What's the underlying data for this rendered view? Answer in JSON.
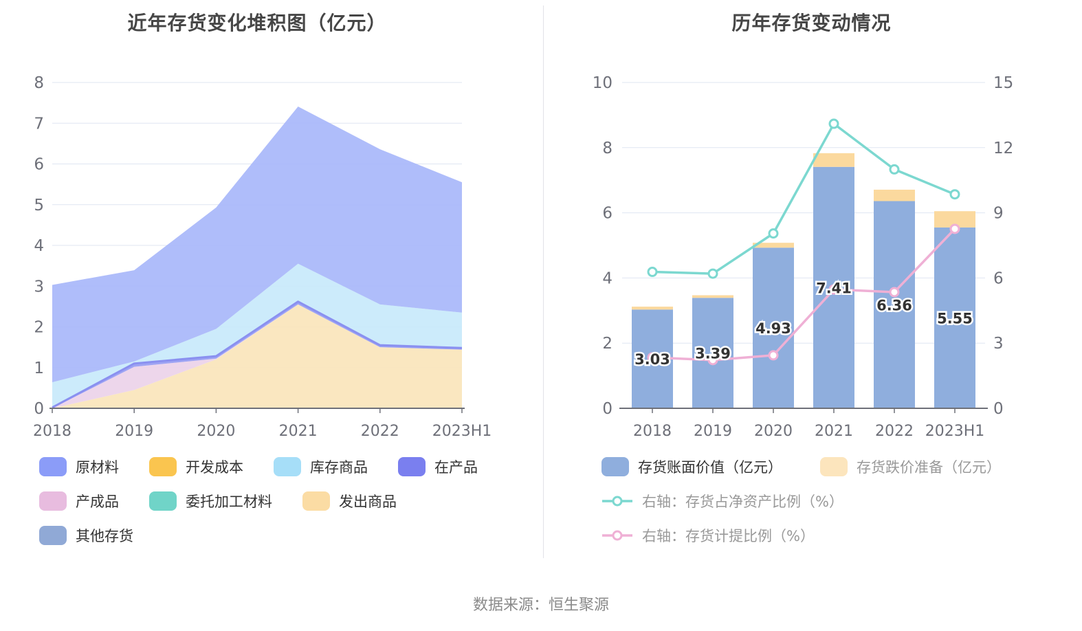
{
  "source_text": "数据来源：恒生聚源",
  "chart_data": [
    {
      "type": "area",
      "title": "近年存货变化堆积图（亿元）",
      "categories": [
        "2018",
        "2019",
        "2020",
        "2021",
        "2022",
        "2023H1"
      ],
      "ylim": [
        0,
        8
      ],
      "y_ticks": [
        0,
        1,
        2,
        3,
        4,
        5,
        6,
        7,
        8
      ],
      "grid": true,
      "legend_position": "bottom",
      "stack_order_bottom_to_top": [
        "其他存货",
        "发出商品",
        "委托加工材料",
        "产成品",
        "在产品",
        "库存商品",
        "开发成本",
        "原材料"
      ],
      "series": [
        {
          "id": "raw-materials",
          "name": "原材料",
          "legend_color": "#8B9CF8",
          "fill": "#A9B8FA",
          "values": [
            2.39,
            2.24,
            2.98,
            3.86,
            3.81,
            3.2
          ]
        },
        {
          "id": "development-cost",
          "name": "开发成本",
          "legend_color": "#FAC54F",
          "fill": "#FAC54F",
          "values": [
            0,
            0,
            0,
            0,
            0,
            0
          ]
        },
        {
          "id": "stock-goods",
          "name": "库存商品",
          "legend_color": "#A6DEF8",
          "fill": "#C8E9FB",
          "values": [
            0.62,
            0.05,
            0.67,
            0.93,
            1.0,
            0.87
          ]
        },
        {
          "id": "work-in-progress",
          "name": "在产品",
          "legend_color": "#7A7FEF",
          "fill": "#979DF2",
          "stroke": "#8A90F0",
          "values": [
            0.02,
            0.08,
            0.06,
            0.07,
            0.05,
            0.04
          ]
        },
        {
          "id": "finished-goods",
          "name": "产成品",
          "legend_color": "#E8BCDF",
          "fill": "#ECD3E9",
          "values": [
            0,
            0.57,
            0.02,
            0,
            0,
            0
          ]
        },
        {
          "id": "consigned-processing-materials",
          "name": "委托加工材料",
          "legend_color": "#70D4C8",
          "fill": "#70D4C8",
          "values": [
            0,
            0,
            0,
            0,
            0,
            0
          ]
        },
        {
          "id": "shipped-goods",
          "name": "发出商品",
          "legend_color": "#FBDCA4",
          "fill": "#FAE5BB",
          "values": [
            0,
            0.45,
            1.2,
            2.55,
            1.5,
            1.44
          ]
        },
        {
          "id": "other-inventory",
          "name": "其他存货",
          "legend_color": "#90A9D6",
          "fill": "#90A9D6",
          "values": [
            0,
            0,
            0,
            0,
            0,
            0
          ]
        }
      ],
      "axis_colors": {
        "grid": "#DFE5F2",
        "axis_line": "#6E7079",
        "tick_label": "#6E7079"
      }
    },
    {
      "type": "bar+line",
      "title": "历年存货变动情况",
      "categories": [
        "2018",
        "2019",
        "2020",
        "2021",
        "2022",
        "2023H1"
      ],
      "left_ylim": [
        0,
        10
      ],
      "left_y_ticks": [
        0,
        2,
        4,
        6,
        8,
        10
      ],
      "right_ylim": [
        0,
        15
      ],
      "right_y_ticks": [
        0,
        3,
        6,
        9,
        12,
        15
      ],
      "grid": true,
      "legend_position": "bottom",
      "series": [
        {
          "id": "book-value",
          "name": "存货账面价值（亿元）",
          "type": "bar",
          "axis": "left",
          "legend_type": "swatch",
          "color": "#8FAEDD",
          "legend_color": "#8FAEDD",
          "label_color": "#333333",
          "values": [
            3.03,
            3.39,
            4.93,
            7.41,
            6.36,
            5.55
          ],
          "labels": [
            "3.03",
            "3.39",
            "4.93",
            "7.41",
            "6.36",
            "5.55"
          ]
        },
        {
          "id": "impairment-provision",
          "name": "存货跌价准备（亿元）",
          "type": "bar",
          "axis": "left",
          "legend_type": "swatch",
          "color": "#FBD99E",
          "legend_color": "#FCE5BD",
          "label_color": "#999999",
          "values": [
            0.09,
            0.08,
            0.15,
            0.42,
            0.35,
            0.5
          ]
        },
        {
          "id": "net-asset-ratio",
          "name": "右轴：存货占净资产比例（%）",
          "type": "line",
          "axis": "right",
          "legend_type": "line",
          "color": "#7CD8D0",
          "legend_color": "#7CD8D0",
          "label_color": "#999999",
          "values": [
            6.28,
            6.2,
            8.05,
            13.1,
            11.0,
            9.85
          ]
        },
        {
          "id": "provision-ratio",
          "name": "右轴：存货计提比例（%）",
          "type": "line",
          "axis": "right",
          "legend_type": "line",
          "color": "#EFB0D5",
          "legend_color": "#EFB0D5",
          "label_color": "#999999",
          "values": [
            2.34,
            2.22,
            2.44,
            5.47,
            5.35,
            8.26
          ]
        }
      ],
      "value_label_color": "#333333",
      "axis_colors": {
        "grid": "#DFE5F2",
        "axis_line": "#6E7079",
        "tick_label": "#6E7079"
      }
    }
  ]
}
